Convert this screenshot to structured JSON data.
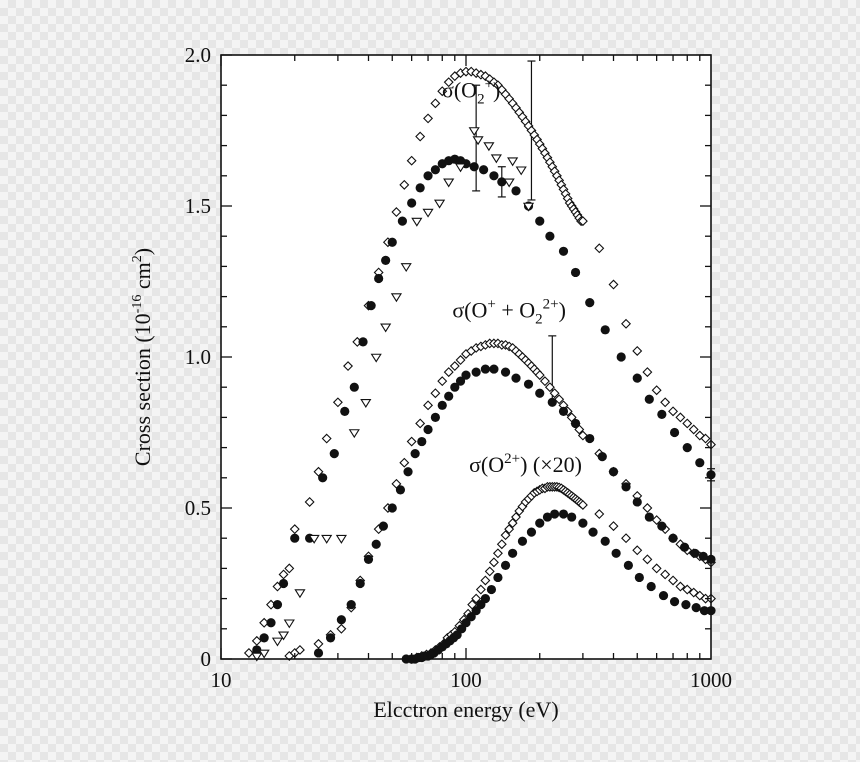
{
  "chart_data": {
    "type": "scatter",
    "x_scale": "log",
    "xlim": [
      10,
      1000
    ],
    "ylim": [
      0,
      2.0
    ],
    "grid": false,
    "legend": "none",
    "xlabel": "Elcctron energy (eV)",
    "ylabel": {
      "prefix": "Cross section (10",
      "exp": "-16",
      "mid": " cm",
      "exp2": "2",
      "suffix": ")"
    },
    "x_ticks": [
      {
        "value": 10,
        "label": "10"
      },
      {
        "value": 100,
        "label": "100"
      },
      {
        "value": 1000,
        "label": "1000"
      }
    ],
    "y_ticks": [
      {
        "value": 0,
        "label": "0"
      },
      {
        "value": 0.5,
        "label": "0.5"
      },
      {
        "value": 1.0,
        "label": "1.0"
      },
      {
        "value": 1.5,
        "label": "1.5"
      },
      {
        "value": 2.0,
        "label": "2.0"
      }
    ],
    "annotations": [
      {
        "name": "label-o2-plus",
        "at": [
          105,
          1.86
        ],
        "parts": [
          {
            "t": "σ(O"
          },
          {
            "t": "2",
            "sub": true
          },
          {
            "t": "+",
            "sup": true
          },
          {
            "t": ")"
          }
        ]
      },
      {
        "name": "label-o-plus-o2-2plus",
        "at": [
          150,
          1.13
        ],
        "parts": [
          {
            "t": "σ(O"
          },
          {
            "t": "+",
            "sup": true
          },
          {
            "t": " + O"
          },
          {
            "t": "2",
            "sub": true
          },
          {
            "t": "2+",
            "sup": true
          },
          {
            "t": ")"
          }
        ]
      },
      {
        "name": "label-o-2plus",
        "at": [
          175,
          0.62
        ],
        "parts": [
          {
            "t": "σ(O"
          },
          {
            "t": "2+",
            "sup": true
          },
          {
            "t": ") (×20)"
          }
        ]
      }
    ],
    "error_bars": [
      {
        "x": 110,
        "y": 1.63,
        "lo": 1.55,
        "hi": 1.9
      },
      {
        "x": 140,
        "y": 1.58,
        "lo": 1.53,
        "hi": 1.63
      },
      {
        "x": 185,
        "y": 1.72,
        "lo": 1.52,
        "hi": 1.98
      },
      {
        "x": 225,
        "y": 0.91,
        "lo": 0.85,
        "hi": 1.07
      },
      {
        "x": 1000,
        "y": 0.61,
        "lo": 0.59,
        "hi": 0.63
      }
    ],
    "series": [
      {
        "name": "σ(O2+) open diamonds",
        "marker": "diamond-open",
        "color": "#111111",
        "x": [
          13,
          14,
          15,
          16,
          17,
          18,
          19,
          20,
          23,
          25,
          27,
          30,
          33,
          36,
          40,
          44,
          48,
          52,
          56,
          60,
          65,
          70,
          75,
          80,
          85,
          90,
          95,
          100,
          105,
          110,
          115,
          120,
          125,
          130,
          135,
          140,
          145,
          150,
          155,
          160,
          165,
          170,
          175,
          180,
          185,
          190,
          195,
          200,
          205,
          210,
          215,
          220,
          225,
          230,
          235,
          240,
          245,
          250,
          255,
          260,
          265,
          270,
          275,
          280,
          285,
          290,
          295,
          300,
          350,
          400,
          450,
          500,
          550,
          600,
          650,
          700,
          750,
          800,
          850,
          900,
          950,
          1000
        ],
        "y": [
          0.02,
          0.06,
          0.12,
          0.18,
          0.24,
          0.28,
          0.3,
          0.43,
          0.52,
          0.62,
          0.73,
          0.85,
          0.97,
          1.05,
          1.17,
          1.28,
          1.38,
          1.48,
          1.57,
          1.65,
          1.73,
          1.79,
          1.84,
          1.88,
          1.91,
          1.93,
          1.94,
          1.945,
          1.945,
          1.94,
          1.935,
          1.93,
          1.92,
          1.91,
          1.9,
          1.885,
          1.87,
          1.855,
          1.84,
          1.825,
          1.81,
          1.795,
          1.78,
          1.765,
          1.75,
          1.735,
          1.72,
          1.705,
          1.69,
          1.675,
          1.66,
          1.645,
          1.63,
          1.615,
          1.6,
          1.585,
          1.57,
          1.555,
          1.54,
          1.525,
          1.51,
          1.5,
          1.49,
          1.48,
          1.47,
          1.46,
          1.45,
          1.45,
          1.36,
          1.24,
          1.11,
          1.02,
          0.95,
          0.89,
          0.85,
          0.82,
          0.8,
          0.78,
          0.76,
          0.74,
          0.73,
          0.71
        ]
      },
      {
        "name": "σ(O2+) filled circles",
        "marker": "circle-filled",
        "color": "#111111",
        "x": [
          14,
          15,
          16,
          17,
          18,
          20,
          23,
          26,
          29,
          32,
          35,
          38,
          41,
          44,
          47,
          50,
          55,
          60,
          65,
          70,
          75,
          80,
          85,
          90,
          95,
          100,
          108,
          118,
          130,
          140,
          160,
          180,
          200,
          220,
          250,
          280,
          320,
          370,
          430,
          500,
          560,
          630,
          710,
          800,
          900,
          1000
        ],
        "y": [
          0.03,
          0.07,
          0.12,
          0.18,
          0.25,
          0.4,
          0.4,
          0.6,
          0.68,
          0.82,
          0.9,
          1.05,
          1.17,
          1.26,
          1.32,
          1.38,
          1.45,
          1.51,
          1.56,
          1.6,
          1.62,
          1.64,
          1.65,
          1.655,
          1.65,
          1.64,
          1.63,
          1.62,
          1.6,
          1.58,
          1.55,
          1.5,
          1.45,
          1.4,
          1.35,
          1.28,
          1.18,
          1.09,
          1.0,
          0.93,
          0.86,
          0.81,
          0.75,
          0.7,
          0.65,
          0.61
        ]
      },
      {
        "name": "σ(O2+) open triangles",
        "marker": "triangle-open",
        "color": "#111111",
        "x": [
          14,
          15,
          17,
          18,
          19,
          21,
          24,
          27,
          31,
          35,
          39,
          43,
          47,
          52,
          57,
          63,
          70,
          78,
          85,
          95,
          108,
          112,
          124,
          133,
          150,
          155,
          168,
          180
        ],
        "y": [
          0.01,
          0.02,
          0.06,
          0.08,
          0.12,
          0.22,
          0.4,
          0.4,
          0.4,
          0.75,
          0.85,
          1.0,
          1.1,
          1.2,
          1.3,
          1.45,
          1.48,
          1.51,
          1.58,
          1.63,
          1.75,
          1.72,
          1.7,
          1.66,
          1.58,
          1.65,
          1.62,
          1.5
        ]
      },
      {
        "name": "σ(O+ + O2 2+) open circles-diamonds",
        "marker": "diamond-open",
        "color": "#111111",
        "x": [
          19,
          20,
          21,
          25,
          28,
          31,
          34,
          37,
          40,
          44,
          48,
          52,
          56,
          60,
          65,
          70,
          75,
          80,
          85,
          90,
          95,
          100,
          105,
          110,
          115,
          120,
          125,
          130,
          135,
          140,
          145,
          150,
          155,
          160,
          165,
          170,
          175,
          180,
          185,
          190,
          195,
          200,
          210,
          220,
          230,
          240,
          250,
          260,
          270,
          280,
          290,
          300,
          350,
          400,
          450,
          500,
          550,
          600,
          650,
          700,
          750,
          800,
          850,
          900,
          950,
          1000
        ],
        "y": [
          0.01,
          0.02,
          0.03,
          0.05,
          0.08,
          0.1,
          0.17,
          0.26,
          0.34,
          0.43,
          0.5,
          0.58,
          0.65,
          0.72,
          0.78,
          0.84,
          0.88,
          0.92,
          0.95,
          0.97,
          0.99,
          1.01,
          1.02,
          1.03,
          1.035,
          1.04,
          1.045,
          1.045,
          1.045,
          1.04,
          1.04,
          1.035,
          1.03,
          1.02,
          1.01,
          1.0,
          0.99,
          0.98,
          0.97,
          0.96,
          0.95,
          0.94,
          0.92,
          0.9,
          0.88,
          0.86,
          0.84,
          0.82,
          0.8,
          0.78,
          0.76,
          0.74,
          0.68,
          0.62,
          0.58,
          0.54,
          0.5,
          0.46,
          0.43,
          0.4,
          0.38,
          0.36,
          0.35,
          0.34,
          0.33,
          0.32
        ]
      },
      {
        "name": "σ(O+ + O2 2+) filled circles",
        "marker": "circle-filled",
        "color": "#111111",
        "x": [
          25,
          28,
          31,
          34,
          37,
          40,
          43,
          46,
          50,
          54,
          58,
          62,
          66,
          70,
          75,
          80,
          85,
          90,
          95,
          100,
          110,
          120,
          130,
          145,
          160,
          180,
          200,
          225,
          250,
          280,
          320,
          360,
          400,
          450,
          500,
          560,
          630,
          700,
          780,
          860,
          930,
          1000
        ],
        "y": [
          0.02,
          0.07,
          0.13,
          0.18,
          0.25,
          0.33,
          0.38,
          0.44,
          0.5,
          0.56,
          0.62,
          0.68,
          0.72,
          0.76,
          0.8,
          0.84,
          0.87,
          0.9,
          0.92,
          0.94,
          0.95,
          0.96,
          0.96,
          0.95,
          0.93,
          0.91,
          0.88,
          0.85,
          0.82,
          0.78,
          0.73,
          0.67,
          0.62,
          0.57,
          0.52,
          0.47,
          0.44,
          0.4,
          0.37,
          0.35,
          0.34,
          0.33
        ]
      },
      {
        "name": "σ(O2+) (×20) open diamonds",
        "marker": "diamond-open",
        "color": "#111111",
        "x": [
          60,
          63,
          66,
          69,
          72,
          75,
          78,
          81,
          84,
          87,
          90,
          94,
          98,
          102,
          106,
          110,
          115,
          120,
          125,
          130,
          135,
          140,
          145,
          150,
          155,
          160,
          165,
          170,
          175,
          180,
          185,
          190,
          195,
          200,
          205,
          210,
          215,
          220,
          225,
          230,
          235,
          240,
          245,
          250,
          255,
          260,
          265,
          270,
          275,
          280,
          285,
          290,
          295,
          300,
          350,
          400,
          450,
          500,
          550,
          600,
          650,
          700,
          750,
          800,
          850,
          900,
          950,
          1000
        ],
        "y": [
          0.0,
          0.005,
          0.01,
          0.015,
          0.02,
          0.03,
          0.04,
          0.05,
          0.07,
          0.08,
          0.09,
          0.11,
          0.13,
          0.15,
          0.18,
          0.2,
          0.23,
          0.26,
          0.29,
          0.32,
          0.35,
          0.38,
          0.41,
          0.43,
          0.45,
          0.47,
          0.49,
          0.505,
          0.52,
          0.53,
          0.54,
          0.55,
          0.555,
          0.56,
          0.565,
          0.565,
          0.57,
          0.57,
          0.57,
          0.57,
          0.57,
          0.568,
          0.565,
          0.56,
          0.555,
          0.55,
          0.545,
          0.54,
          0.535,
          0.53,
          0.525,
          0.52,
          0.515,
          0.51,
          0.48,
          0.44,
          0.4,
          0.36,
          0.33,
          0.3,
          0.28,
          0.26,
          0.24,
          0.23,
          0.22,
          0.21,
          0.2,
          0.2
        ]
      },
      {
        "name": "σ(O2+) (×20) filled circles",
        "marker": "circle-filled",
        "color": "#111111",
        "x": [
          57,
          60,
          62,
          64,
          66,
          68,
          70,
          72,
          74,
          77,
          80,
          83,
          86,
          89,
          92,
          96,
          100,
          105,
          110,
          115,
          120,
          127,
          135,
          145,
          155,
          170,
          185,
          200,
          215,
          230,
          250,
          270,
          300,
          330,
          370,
          410,
          460,
          510,
          570,
          640,
          710,
          790,
          870,
          940,
          1000
        ],
        "y": [
          0.0,
          0.0,
          0.0,
          0.005,
          0.005,
          0.01,
          0.01,
          0.015,
          0.02,
          0.03,
          0.04,
          0.05,
          0.06,
          0.07,
          0.08,
          0.1,
          0.12,
          0.14,
          0.16,
          0.18,
          0.2,
          0.23,
          0.27,
          0.31,
          0.35,
          0.39,
          0.42,
          0.45,
          0.47,
          0.48,
          0.48,
          0.47,
          0.45,
          0.42,
          0.39,
          0.35,
          0.31,
          0.27,
          0.24,
          0.21,
          0.19,
          0.18,
          0.17,
          0.16,
          0.16
        ]
      }
    ]
  }
}
